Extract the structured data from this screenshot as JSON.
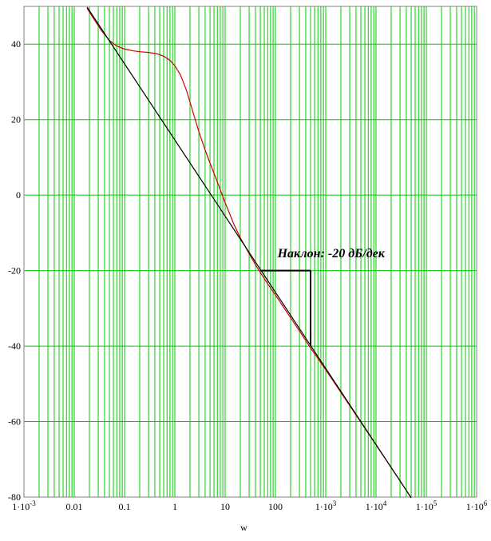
{
  "chart_data": {
    "type": "line",
    "x_scale": "log",
    "xlim": [
      0.001,
      1000000
    ],
    "ylim": [
      -80,
      50
    ],
    "xlabel": "w",
    "ylabel": "",
    "grid": true,
    "grid_color": "#00cc00",
    "x_tick_labels": [
      {
        "x": 0.001,
        "mant": "1·10",
        "exp": "-3"
      },
      {
        "x": 0.01,
        "mant": "0.01",
        "exp": ""
      },
      {
        "x": 0.1,
        "mant": "0.1",
        "exp": ""
      },
      {
        "x": 1,
        "mant": "1",
        "exp": ""
      },
      {
        "x": 10,
        "mant": "10",
        "exp": ""
      },
      {
        "x": 100,
        "mant": "100",
        "exp": ""
      },
      {
        "x": 1000,
        "mant": "1·10",
        "exp": "3"
      },
      {
        "x": 10000,
        "mant": "1·10",
        "exp": "4"
      },
      {
        "x": 100000,
        "mant": "1·10",
        "exp": "5"
      },
      {
        "x": 1000000,
        "mant": "1·10",
        "exp": "6"
      }
    ],
    "y_ticks": [
      40,
      20,
      0,
      -20,
      -40,
      -60,
      -80
    ],
    "series": [
      {
        "color": "#cc0000",
        "points": [
          [
            0.018,
            49.5
          ],
          [
            0.025,
            46.5
          ],
          [
            0.035,
            43.5
          ],
          [
            0.05,
            41.0
          ],
          [
            0.07,
            39.5
          ],
          [
            0.1,
            38.7
          ],
          [
            0.15,
            38.2
          ],
          [
            0.2,
            38.0
          ],
          [
            0.3,
            37.8
          ],
          [
            0.45,
            37.4
          ],
          [
            0.6,
            36.8
          ],
          [
            0.8,
            35.7
          ],
          [
            1.0,
            34.3
          ],
          [
            1.3,
            31.8
          ],
          [
            1.7,
            27.8
          ],
          [
            2.2,
            22.8
          ],
          [
            3.0,
            16.8
          ],
          [
            4.0,
            12.0
          ],
          [
            5.0,
            8.5
          ],
          [
            7.0,
            3.5
          ],
          [
            10,
            -2.0
          ],
          [
            15,
            -7.8
          ],
          [
            20,
            -11.3
          ],
          [
            30,
            -15.5
          ],
          [
            40,
            -18.4
          ],
          [
            50,
            -20.5
          ],
          [
            70,
            -23.5
          ],
          [
            100,
            -26.5
          ],
          [
            150,
            -30.0
          ],
          [
            200,
            -32.5
          ],
          [
            300,
            -36.0
          ],
          [
            500,
            -40.5
          ],
          [
            1000,
            -46.3
          ],
          [
            3000,
            -55.8
          ],
          [
            10000,
            -66.2
          ],
          [
            30000,
            -75.7
          ],
          [
            50000,
            -80.2
          ]
        ]
      },
      {
        "color": "#000000",
        "points": [
          [
            0.018,
            49.8
          ],
          [
            50000,
            -80.2
          ]
        ]
      }
    ],
    "annotations": [
      {
        "text": "Наклон: -20 дБ/дек",
        "x": 110,
        "y": -16.5
      },
      {
        "type": "slope-triangle",
        "x1": 50,
        "x2": 500,
        "y_top": -20,
        "y_bottom": -40
      }
    ]
  }
}
